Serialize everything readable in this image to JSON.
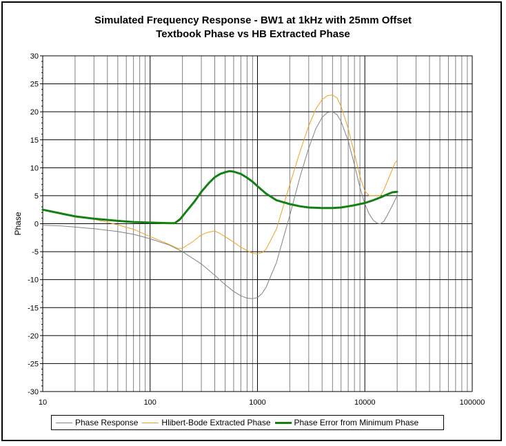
{
  "chart_data": {
    "type": "line",
    "title": [
      "Simulated Frequency Response - BW1 at 1kHz with 25mm Offset",
      "Textbook Phase vs HB Extracted Phase"
    ],
    "xlabel": "",
    "ylabel": "Phase",
    "xscale": "log",
    "xlim": [
      10,
      100000
    ],
    "ylim": [
      -30,
      30
    ],
    "xticks": [
      "10",
      "100",
      "1000",
      "10000",
      "100000"
    ],
    "yticks": [
      "30",
      "25",
      "20",
      "15",
      "10",
      "5",
      "0",
      "-5",
      "-10",
      "-15",
      "-20",
      "-25",
      "-30"
    ],
    "grid": true,
    "legend_position": "bottom",
    "series": [
      {
        "name": "Phase Response",
        "color": "#808080",
        "x": [
          10,
          15,
          20,
          30,
          50,
          70,
          100,
          150,
          200,
          300,
          400,
          500,
          600,
          700,
          800,
          900,
          1000,
          1100,
          1200,
          1500,
          2000,
          2500,
          3000,
          3500,
          4000,
          4500,
          5000,
          5500,
          6000,
          7000,
          8000,
          9000,
          10000,
          11000,
          12000,
          13000,
          14000,
          15000,
          16000,
          18000,
          20000
        ],
        "y": [
          -0.3,
          -0.4,
          -0.6,
          -0.9,
          -1.4,
          -1.9,
          -2.7,
          -3.8,
          -5.0,
          -7.2,
          -9.2,
          -10.9,
          -12.1,
          -12.9,
          -13.3,
          -13.4,
          -13.2,
          -12.5,
          -11.4,
          -7.0,
          1.5,
          8.5,
          13.5,
          17.0,
          19.0,
          19.9,
          20.0,
          19.5,
          18.3,
          14.8,
          10.5,
          6.5,
          3.5,
          1.7,
          0.6,
          0.1,
          0.0,
          0.4,
          1.3,
          3.2,
          5.0
        ]
      },
      {
        "name": "Hlibert-Bode Extracted Phase",
        "color": "#f0a020",
        "x": [
          10,
          15,
          20,
          30,
          50,
          70,
          100,
          150,
          180,
          200,
          250,
          300,
          350,
          400,
          450,
          500,
          600,
          700,
          800,
          900,
          1000,
          1100,
          1200,
          1500,
          2000,
          2500,
          3000,
          3500,
          4000,
          4500,
          5000,
          5500,
          6000,
          7000,
          8000,
          9000,
          10000,
          11000,
          12000,
          13000,
          14000,
          15000,
          17000,
          19000,
          20000
        ],
        "y": [
          2.5,
          1.8,
          1.3,
          0.8,
          -0.2,
          -1.0,
          -2.3,
          -3.7,
          -4.4,
          -4.4,
          -3.2,
          -2.0,
          -1.5,
          -1.3,
          -1.8,
          -2.3,
          -3.3,
          -4.2,
          -4.8,
          -5.3,
          -5.4,
          -5.2,
          -4.6,
          -1.0,
          7.0,
          13.0,
          17.5,
          20.5,
          22.2,
          22.9,
          23.0,
          22.5,
          21.0,
          17.0,
          12.5,
          8.5,
          5.8,
          5.0,
          5.0,
          5.0,
          5.0,
          6.0,
          8.5,
          10.8,
          11.3
        ]
      },
      {
        "name": "Phase Error from Minimum Phase",
        "color": "#138013",
        "x": [
          10,
          15,
          20,
          30,
          50,
          70,
          100,
          150,
          170,
          190,
          220,
          260,
          300,
          350,
          400,
          450,
          500,
          550,
          600,
          700,
          800,
          900,
          1000,
          1200,
          1500,
          2000,
          2500,
          3000,
          4000,
          5000,
          6000,
          7000,
          8000,
          10000,
          12000,
          14000,
          16000,
          18000,
          20000
        ],
        "y": [
          2.5,
          1.8,
          1.3,
          0.9,
          0.5,
          0.3,
          0.2,
          0.1,
          0.1,
          0.8,
          2.3,
          4.0,
          5.7,
          7.2,
          8.3,
          8.9,
          9.2,
          9.4,
          9.3,
          8.9,
          8.2,
          7.5,
          6.7,
          5.4,
          4.2,
          3.5,
          3.1,
          2.9,
          2.8,
          2.8,
          2.9,
          3.1,
          3.3,
          3.7,
          4.2,
          4.7,
          5.2,
          5.6,
          5.7
        ]
      }
    ]
  }
}
